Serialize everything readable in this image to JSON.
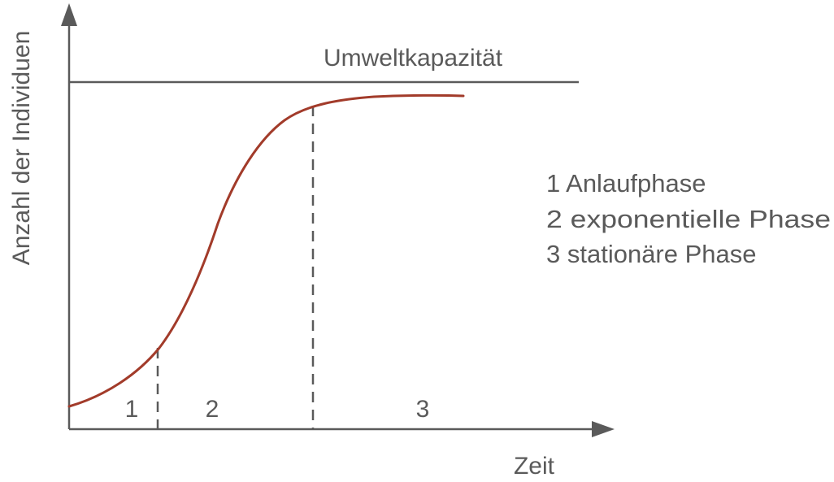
{
  "diagram": {
    "y_axis_label": "Anzahl der Individuen",
    "x_axis_label": "Zeit",
    "capacity_label": "Umweltkapazität",
    "phase_numbers": [
      "1",
      "2",
      "3"
    ],
    "legend": [
      "1 Anlaufphase",
      "2 exponentielle Phase",
      "3 stationäre Phase"
    ],
    "colors": {
      "curve": "#a23b2a",
      "axes": "#5a5a5a"
    }
  }
}
